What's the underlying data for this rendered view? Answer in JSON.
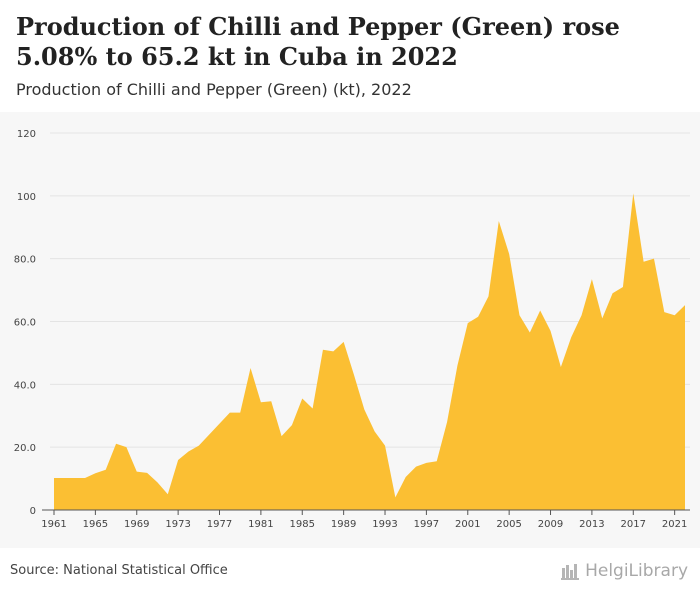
{
  "header": {
    "title": "Production of Chilli and Pepper (Green) rose 5.08% to 65.2 kt in Cuba in 2022",
    "subtitle": "Production of Chilli and Pepper (Green) (kt), 2022"
  },
  "footer": {
    "source": "Source: National Statistical Office",
    "brand": "HelgiLibrary"
  },
  "colors": {
    "fill": "#fbbf33",
    "grid": "#e4e4e4",
    "axis": "#555555"
  },
  "chart_data": {
    "type": "area",
    "title": "Production of Chilli and Pepper (Green) rose 5.08% to 65.2 kt in Cuba in 2022",
    "subtitle": "Production of Chilli and Pepper (Green) (kt), 2022",
    "xlabel": "",
    "ylabel": "",
    "xlim": [
      1961,
      2022
    ],
    "ylim": [
      0,
      120
    ],
    "grid": true,
    "legend": "none",
    "y_ticks": [
      {
        "value": 0,
        "label": "0"
      },
      {
        "value": 20,
        "label": "20.0"
      },
      {
        "value": 40,
        "label": "40.0"
      },
      {
        "value": 60,
        "label": "60.0"
      },
      {
        "value": 80,
        "label": "80.0"
      },
      {
        "value": 100,
        "label": "100"
      },
      {
        "value": 120,
        "label": "120"
      }
    ],
    "x_ticks": [
      {
        "value": 1961,
        "label": "1961"
      },
      {
        "value": 1965,
        "label": "1965"
      },
      {
        "value": 1969,
        "label": "1969"
      },
      {
        "value": 1973,
        "label": "1973"
      },
      {
        "value": 1977,
        "label": "1977"
      },
      {
        "value": 1981,
        "label": "1981"
      },
      {
        "value": 1985,
        "label": "1985"
      },
      {
        "value": 1989,
        "label": "1989"
      },
      {
        "value": 1993,
        "label": "1993"
      },
      {
        "value": 1997,
        "label": "1997"
      },
      {
        "value": 2001,
        "label": "2001"
      },
      {
        "value": 2005,
        "label": "2005"
      },
      {
        "value": 2009,
        "label": "2009"
      },
      {
        "value": 2013,
        "label": "2013"
      },
      {
        "value": 2017,
        "label": "2017"
      },
      {
        "value": 2021,
        "label": "2021"
      }
    ],
    "x": [
      1961,
      1962,
      1963,
      1964,
      1965,
      1966,
      1967,
      1968,
      1969,
      1970,
      1971,
      1972,
      1973,
      1974,
      1975,
      1976,
      1977,
      1978,
      1979,
      1980,
      1981,
      1982,
      1983,
      1984,
      1985,
      1986,
      1987,
      1988,
      1989,
      1990,
      1991,
      1992,
      1993,
      1994,
      1995,
      1996,
      1997,
      1998,
      1999,
      2000,
      2001,
      2002,
      2003,
      2004,
      2005,
      2006,
      2007,
      2008,
      2009,
      2010,
      2011,
      2012,
      2013,
      2014,
      2015,
      2016,
      2017,
      2018,
      2019,
      2020,
      2021,
      2022
    ],
    "values": [
      10.2,
      10.2,
      10.2,
      10.2,
      11.7,
      12.8,
      21.1,
      20.0,
      12.2,
      11.8,
      8.8,
      5.0,
      15.9,
      18.6,
      20.5,
      24.0,
      27.5,
      31.0,
      31.0,
      45.2,
      34.3,
      34.6,
      23.5,
      27.0,
      35.5,
      32.3,
      51.0,
      50.5,
      53.5,
      43.0,
      32.0,
      25.0,
      20.5,
      4.0,
      10.5,
      13.8,
      15.0,
      15.5,
      28.0,
      46.0,
      59.5,
      61.5,
      68.0,
      92.0,
      81.5,
      62.0,
      56.5,
      63.5,
      57.0,
      45.5,
      55.0,
      62.0,
      73.5,
      61.0,
      69.0,
      71.0,
      100.8,
      79.0,
      80.0,
      63.0,
      62.0,
      65.2
    ]
  }
}
